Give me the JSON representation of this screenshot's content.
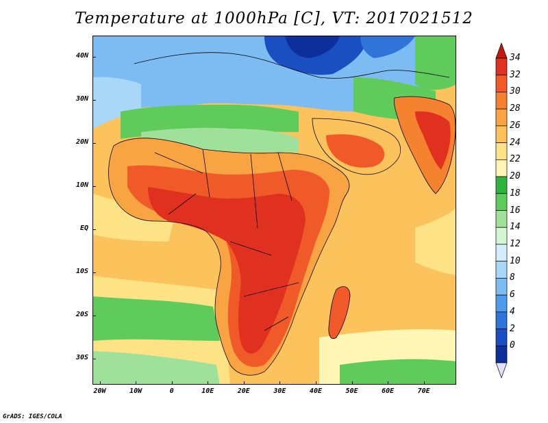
{
  "title": "Temperature at 1000hPa [C], VT: 2017021512",
  "credit": "GrADS: IGES/COLA",
  "map": {
    "lat_range": [
      -36,
      45
    ],
    "lon_range": [
      -22,
      79
    ],
    "lat_ticks": [
      "40N",
      "30N",
      "20N",
      "10N",
      "EQ",
      "10S",
      "20S",
      "30S"
    ],
    "lon_ticks": [
      "20W",
      "10W",
      "0",
      "10E",
      "20E",
      "30E",
      "40E",
      "50E",
      "60E",
      "70E"
    ]
  },
  "colorbar": {
    "labels": [
      "34",
      "32",
      "30",
      "28",
      "26",
      "24",
      "22",
      "20",
      "18",
      "16",
      "14",
      "12",
      "10",
      "8",
      "6",
      "4",
      "2",
      "0"
    ],
    "colors": [
      "#e03020",
      "#f05a28",
      "#f5822f",
      "#f8a443",
      "#fcc35c",
      "#fde386",
      "#fff5b4",
      "#2fb43f",
      "#5ecb5a",
      "#9fe09a",
      "#d6f5d2",
      "#d4eefc",
      "#a9d7f7",
      "#7cbcf3",
      "#4f9bea",
      "#2f74d8",
      "#1a4fc2",
      "#0d2f9c"
    ],
    "overflow_high": "#c3170f",
    "overflow_low": "#e2e0f8"
  },
  "colors": {
    "ocean_warm": "#fcc35c",
    "ocean_mild": "#fde386",
    "ocean_cool": "#fff5b4",
    "land_hot": "#e03020",
    "land_warm": "#f05a28",
    "sea_cold": "#1a4fc2",
    "boundary": "#000000"
  }
}
